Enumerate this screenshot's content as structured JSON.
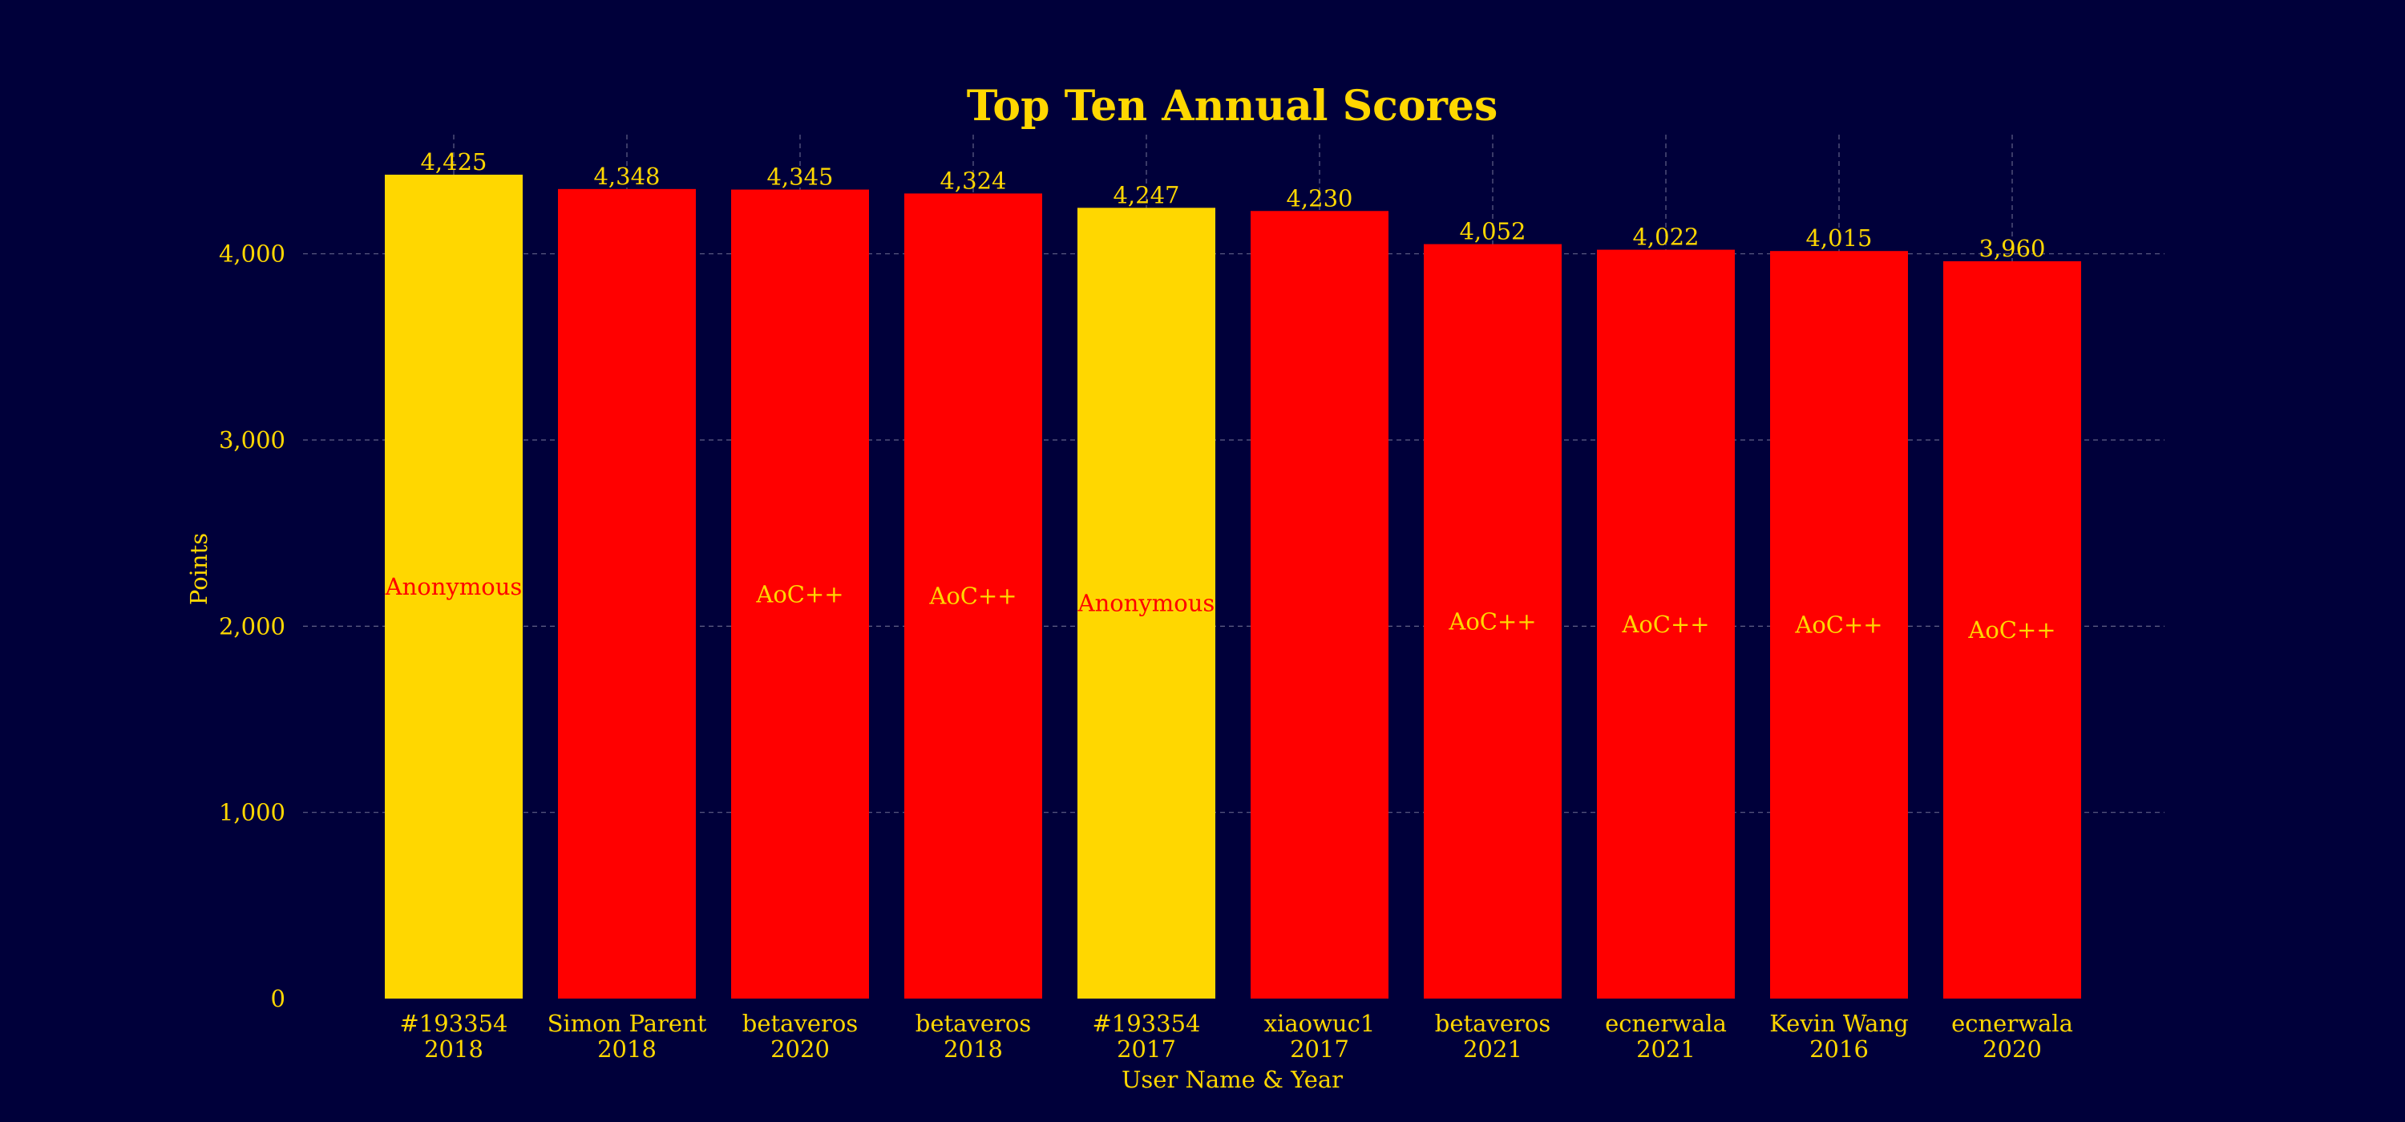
{
  "chart_data": {
    "type": "bar",
    "title": "Top Ten Annual Scores",
    "xlabel": "User Name & Year",
    "ylabel": "Points",
    "ylim": [
      0,
      4640
    ],
    "yticks": [
      0,
      1000,
      2000,
      3000,
      4000
    ],
    "ytick_labels": [
      "0",
      "1,000",
      "2,000",
      "3,000",
      "4,000"
    ],
    "grid": true,
    "categories": [
      {
        "name": "#193354",
        "year": "2018"
      },
      {
        "name": "Simon Parent",
        "year": "2018"
      },
      {
        "name": "betaveros",
        "year": "2020"
      },
      {
        "name": "betaveros",
        "year": "2018"
      },
      {
        "name": "#193354",
        "year": "2017"
      },
      {
        "name": "xiaowuc1",
        "year": "2017"
      },
      {
        "name": "betaveros",
        "year": "2021"
      },
      {
        "name": "ecnerwala",
        "year": "2021"
      },
      {
        "name": "Kevin Wang",
        "year": "2016"
      },
      {
        "name": "ecnerwala",
        "year": "2020"
      }
    ],
    "values": [
      4425,
      4348,
      4345,
      4324,
      4247,
      4230,
      4052,
      4022,
      4015,
      3960
    ],
    "value_labels": [
      "4,425",
      "4,348",
      "4,345",
      "4,324",
      "4,247",
      "4,230",
      "4,052",
      "4,022",
      "4,015",
      "3,960"
    ],
    "bar_labels": [
      "Anonymous",
      "",
      "AoC++",
      "AoC++",
      "Anonymous",
      "",
      "AoC++",
      "AoC++",
      "AoC++",
      "AoC++"
    ],
    "bar_colors": [
      "#ffd700",
      "#ff0000",
      "#ff0000",
      "#ff0000",
      "#ffd700",
      "#ff0000",
      "#ff0000",
      "#ff0000",
      "#ff0000",
      "#ff0000"
    ],
    "bar_label_colors": [
      "#ff0000",
      "#ffd700",
      "#ffd700",
      "#ffd700",
      "#ff0000",
      "#ffd700",
      "#ffd700",
      "#ffd700",
      "#ffd700",
      "#ffd700"
    ],
    "colors": {
      "background": "#00003a",
      "text": "#ffd700",
      "grid": "#8a8aa8"
    }
  }
}
